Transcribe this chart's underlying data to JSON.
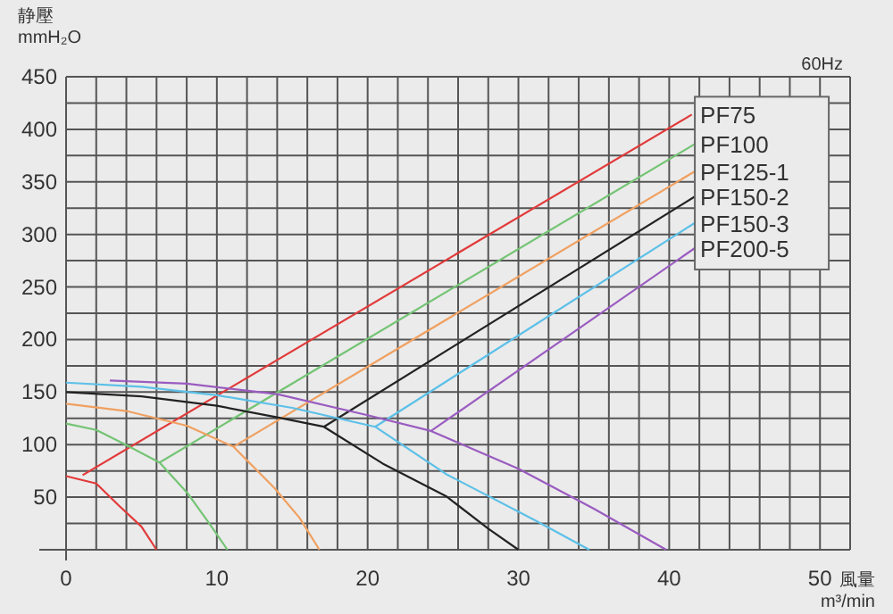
{
  "chart_data": {
    "type": "line",
    "ylabel": "静壓 mmH₂O",
    "xlabel": "風量 m³/min",
    "annotations": [
      "60Hz"
    ],
    "xlim": [
      0,
      52
    ],
    "ylim": [
      0,
      450
    ],
    "xticks": [
      0,
      {
        "value": 2,
        "label": null
      },
      {
        "value": 4,
        "label": null
      },
      {
        "value": 6,
        "label": null
      },
      {
        "value": 8,
        "label": null
      },
      10,
      {
        "value": 12,
        "label": null
      },
      {
        "value": 14,
        "label": null
      },
      {
        "value": 16,
        "label": null
      },
      {
        "value": 18,
        "label": null
      },
      20,
      {
        "value": 22,
        "label": null
      },
      {
        "value": 24,
        "label": null
      },
      {
        "value": 26,
        "label": null
      },
      {
        "value": 28,
        "label": null
      },
      30,
      {
        "value": 32,
        "label": null
      },
      {
        "value": 34,
        "label": null
      },
      {
        "value": 36,
        "label": null
      },
      {
        "value": 38,
        "label": null
      },
      40,
      {
        "value": 42,
        "label": null
      },
      {
        "value": 44,
        "label": null
      },
      {
        "value": 46,
        "label": null
      },
      {
        "value": 48,
        "label": null
      },
      50,
      {
        "value": 52,
        "label": null
      }
    ],
    "yticks": [
      {
        "value": 0,
        "label": null
      },
      {
        "value": 25,
        "label": null
      },
      50,
      {
        "value": 75,
        "label": null
      },
      100,
      {
        "value": 125,
        "label": null
      },
      150,
      {
        "value": 175,
        "label": null
      },
      200,
      {
        "value": 225,
        "label": null
      },
      250,
      {
        "value": 275,
        "label": null
      },
      300,
      {
        "value": 325,
        "label": null
      },
      350,
      {
        "value": 375,
        "label": null
      },
      400,
      {
        "value": 425,
        "label": null
      },
      450
    ],
    "grid": true,
    "legend": "top right",
    "marker": "none",
    "series": [
      {
        "name": "PF75",
        "color": "#e23a3a",
        "x": [
          1.1,
          41.5
        ],
        "values": [
          71,
          414
        ]
      },
      {
        "name": "PF100",
        "color": "#74c474",
        "x": [
          6.2,
          41.7
        ],
        "values": [
          83,
          386
        ]
      },
      {
        "name": "PF125-1",
        "color": "#f0a060",
        "x": [
          11.1,
          41.7
        ],
        "values": [
          98,
          360
        ]
      },
      {
        "name": "PF150-2",
        "color": "#222222",
        "x": [
          17.1,
          41.7
        ],
        "values": [
          117,
          336
        ]
      },
      {
        "name": "PF150-3",
        "color": "#5cc0e8",
        "x": [
          20.5,
          41.7
        ],
        "values": [
          117,
          311
        ]
      },
      {
        "name": "PF200-5",
        "color": "#9a5cc0",
        "x": [
          24.2,
          41.7
        ],
        "values": [
          113,
          287
        ]
      },
      {
        "color": "#e23a3a",
        "x": [
          0,
          2,
          3.5,
          5,
          6
        ],
        "values": [
          70,
          63,
          42,
          22,
          0
        ]
      },
      {
        "color": "#74c474",
        "x": [
          0,
          2,
          3.8,
          6.2,
          8.1,
          9.5,
          10.7
        ],
        "values": [
          120,
          114,
          101,
          83,
          53,
          25,
          0
        ]
      },
      {
        "color": "#f0a060",
        "x": [
          0,
          4,
          8,
          11.1,
          13.8,
          15.5,
          16.8
        ],
        "values": [
          139,
          132,
          118,
          98,
          59,
          30,
          0
        ]
      },
      {
        "color": "#222222",
        "x": [
          0,
          5,
          10,
          14,
          17.1,
          21,
          25.2,
          28,
          30
        ],
        "values": [
          150,
          146,
          137,
          126,
          117,
          82,
          51,
          20,
          0
        ]
      },
      {
        "color": "#5cc0e8",
        "x": [
          0,
          5,
          10,
          15,
          20.5,
          25.2,
          31.1,
          34.7
        ],
        "values": [
          159,
          155,
          147,
          135,
          117,
          72,
          28,
          0
        ]
      },
      {
        "color": "#9a5cc0",
        "x": [
          2.9,
          8,
          14,
          20,
          24.2,
          30,
          35,
          39.8
        ],
        "values": [
          161,
          158,
          148,
          128,
          113,
          77,
          39,
          0
        ]
      }
    ]
  }
}
